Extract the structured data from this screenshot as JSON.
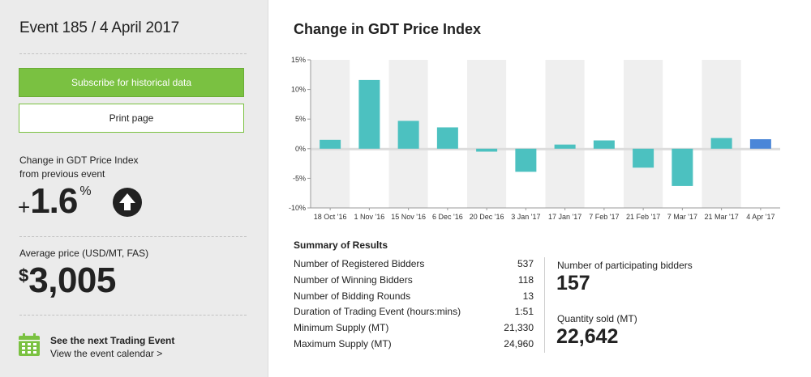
{
  "sidebar": {
    "event_title": "Event 185 / 4 April 2017",
    "subscribe_label": "Subscribe for historical data",
    "print_label": "Print page",
    "change_label_line1": "Change in GDT Price Index",
    "change_label_line2": "from previous event",
    "change_sign": "+",
    "change_value": "1.6",
    "change_unit": "%",
    "change_direction_icon": "up-arrow-icon",
    "avg_label": "Average price (USD/MT, FAS)",
    "avg_currency": "$",
    "avg_value": "3,005",
    "next_event_icon": "calendar-icon",
    "next_event_title": "See the next Trading Event",
    "next_event_link": "View the event calendar >"
  },
  "main": {
    "chart_title": "Change in GDT Price Index",
    "summary_title": "Summary of Results",
    "summary_rows": [
      {
        "label": "Number of Registered Bidders",
        "value": "537"
      },
      {
        "label": "Number of Winning Bidders",
        "value": "118"
      },
      {
        "label": "Number of Bidding Rounds",
        "value": "13"
      },
      {
        "label": "Duration of Trading Event (hours:mins)",
        "value": "1:51"
      },
      {
        "label": "Minimum Supply (MT)",
        "value": "21,330"
      },
      {
        "label": "Maximum Supply (MT)",
        "value": "24,960"
      }
    ],
    "participating_label": "Number of participating bidders",
    "participating_value": "157",
    "quantity_label": "Quantity sold (MT)",
    "quantity_value": "22,642"
  },
  "colors": {
    "accent_green": "#7ac141",
    "bar_teal": "#4cc1c0",
    "bar_latest": "#4a86d8",
    "sidebar_bg": "#ebebeb"
  },
  "chart_data": {
    "type": "bar",
    "categories": [
      "18 Oct '16",
      "1 Nov '16",
      "15 Nov '16",
      "6 Dec '16",
      "20 Dec '16",
      "3 Jan '17",
      "17 Jan '17",
      "7 Feb '17",
      "21 Feb '17",
      "7 Mar '17",
      "21 Mar '17",
      "4 Apr '17"
    ],
    "values": [
      1.5,
      11.6,
      4.7,
      3.6,
      -0.5,
      -3.9,
      0.7,
      1.4,
      -3.2,
      -6.3,
      1.8,
      1.6
    ],
    "y_ticks": [
      "15%",
      "10%",
      "5%",
      "0%",
      "-5%",
      "-10%"
    ],
    "ylim": [
      -10,
      15
    ],
    "highlight_last": true,
    "grid": "alternating-columns"
  }
}
